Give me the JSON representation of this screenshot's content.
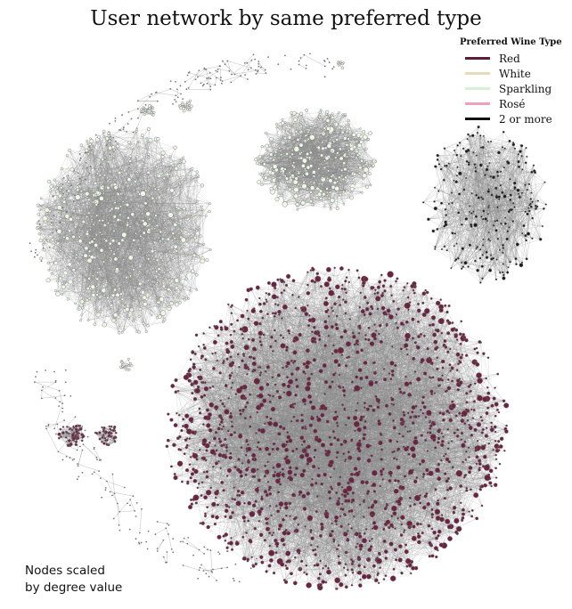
{
  "title": "User network by same preferred type",
  "legend": {
    "title": "Preferred Wine Type",
    "items": [
      {
        "label": "Red",
        "color": "#5a1e3c"
      },
      {
        "label": "White",
        "color": "#e6dcbc"
      },
      {
        "label": "Sparkling",
        "color": "#d6f0d6"
      },
      {
        "label": "Rosé",
        "color": "#f0a0bc"
      },
      {
        "label": "2 or more",
        "color": "#111111"
      }
    ]
  },
  "note": {
    "line1": "Nodes scaled",
    "line2": "by degree value"
  },
  "colors": {
    "edge": "#8a8a8a",
    "node_outline": "#6e6e6e",
    "red_node": "#6b2440",
    "pale_node": "#eef7e6",
    "multi_node": "#1a1a1a"
  }
}
